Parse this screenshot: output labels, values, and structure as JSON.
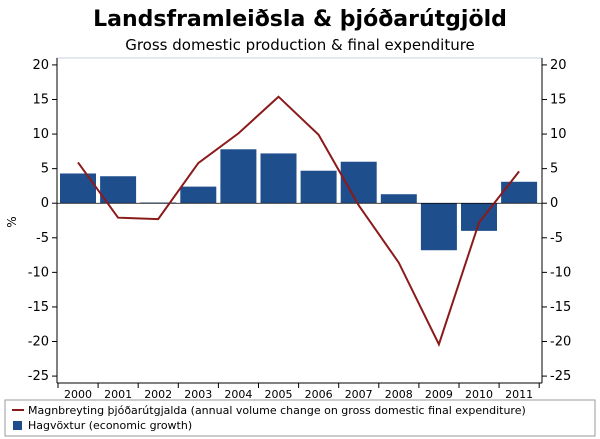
{
  "chart_data": {
    "type": "bar",
    "title": "Landsframleiðsla & þjóðarútgjöld",
    "subtitle": "Gross domestic production & final expenditure",
    "ylabel": "%",
    "ylim": [
      -25,
      20
    ],
    "yticks": [
      20,
      15,
      10,
      5,
      0,
      -5,
      -10,
      -15,
      -20,
      -25
    ],
    "yticks_right": [
      20,
      15,
      10,
      5,
      0,
      -5,
      -10,
      -15,
      -20,
      -25
    ],
    "categories": [
      "2000",
      "2001",
      "2002",
      "2003",
      "2004",
      "2005",
      "2006",
      "2007",
      "2008",
      "2009",
      "2010",
      "2011"
    ],
    "series": [
      {
        "name": "Hagvöxtur (economic  growth)",
        "type": "bar",
        "color": "#1f4e8c",
        "values": [
          4.3,
          3.9,
          0.1,
          2.4,
          7.8,
          7.2,
          4.7,
          6.0,
          1.3,
          -6.8,
          -4.0,
          3.1
        ]
      },
      {
        "name": "Magnbreyting þjóðarútgjalda (annual volume change on gross domestic final expenditure)",
        "type": "line",
        "color": "#8b1a1a",
        "values": [
          5.9,
          -2.1,
          -2.3,
          5.8,
          10.1,
          15.4,
          9.9,
          -0.3,
          -8.6,
          -20.4,
          -2.8,
          4.6
        ]
      }
    ],
    "grid": false,
    "legend_position": "bottom"
  }
}
